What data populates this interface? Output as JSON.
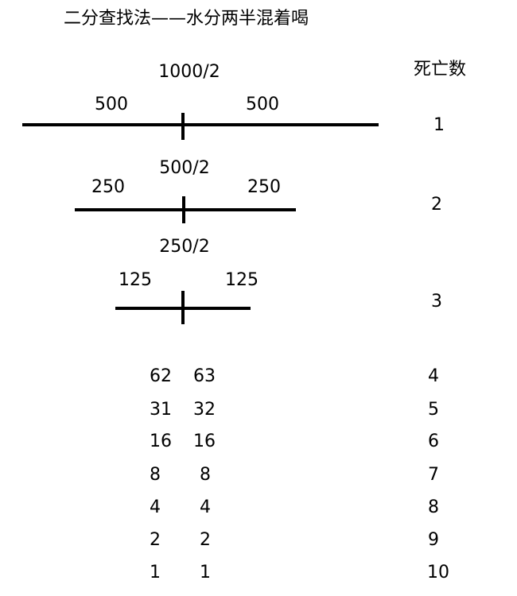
{
  "title": "二分查找法——水分两半混着喝",
  "death_header": "死亡数",
  "segments": [
    {
      "total": "1000/2",
      "left": "500",
      "right": "500",
      "deaths": "1"
    },
    {
      "total": "500/2",
      "left": "250",
      "right": "250",
      "deaths": "2"
    },
    {
      "total": "250/2",
      "left": "125",
      "right": "125",
      "deaths": "3"
    }
  ],
  "rows": [
    {
      "left": "62",
      "right": "63",
      "deaths": "4"
    },
    {
      "left": "31",
      "right": "32",
      "deaths": "5"
    },
    {
      "left": "16",
      "right": "16",
      "deaths": "6"
    },
    {
      "left": "8",
      "right": "8",
      "deaths": "7"
    },
    {
      "left": "4",
      "right": "4",
      "deaths": "8"
    },
    {
      "left": "2",
      "right": "2",
      "deaths": "9"
    },
    {
      "left": "1",
      "right": "1",
      "deaths": "10"
    }
  ]
}
